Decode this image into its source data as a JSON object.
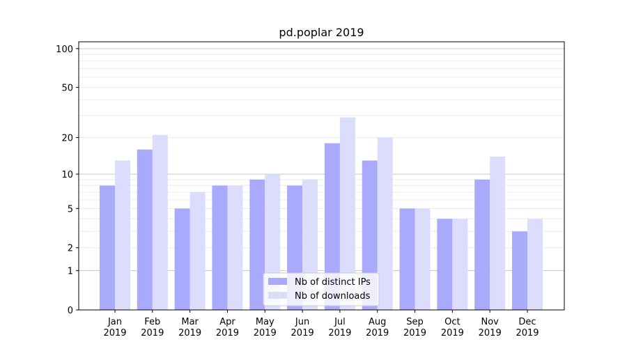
{
  "chart_data": {
    "type": "bar",
    "title": "pd.poplar 2019",
    "xlabel": "",
    "ylabel": "",
    "yscale": "log1p",
    "ylim": [
      0,
      113
    ],
    "yticks": [
      0,
      1,
      2,
      5,
      10,
      20,
      50,
      100
    ],
    "categories": [
      "Jan\n2019",
      "Feb\n2019",
      "Mar\n2019",
      "Apr\n2019",
      "May\n2019",
      "Jun\n2019",
      "Jul\n2019",
      "Aug\n2019",
      "Sep\n2019",
      "Oct\n2019",
      "Nov\n2019",
      "Dec\n2019"
    ],
    "series": [
      {
        "name": "Nb of distinct IPs",
        "color": "#aaaafc",
        "values": [
          8,
          16,
          5,
          8,
          9,
          8,
          18,
          13,
          5,
          4,
          9,
          3
        ]
      },
      {
        "name": "Nb of downloads",
        "color": "#dcdcfd",
        "values": [
          13,
          21,
          7,
          8,
          10,
          9,
          29,
          20,
          5,
          4,
          14,
          4
        ]
      }
    ],
    "legend": "lower-center",
    "grid": true
  }
}
